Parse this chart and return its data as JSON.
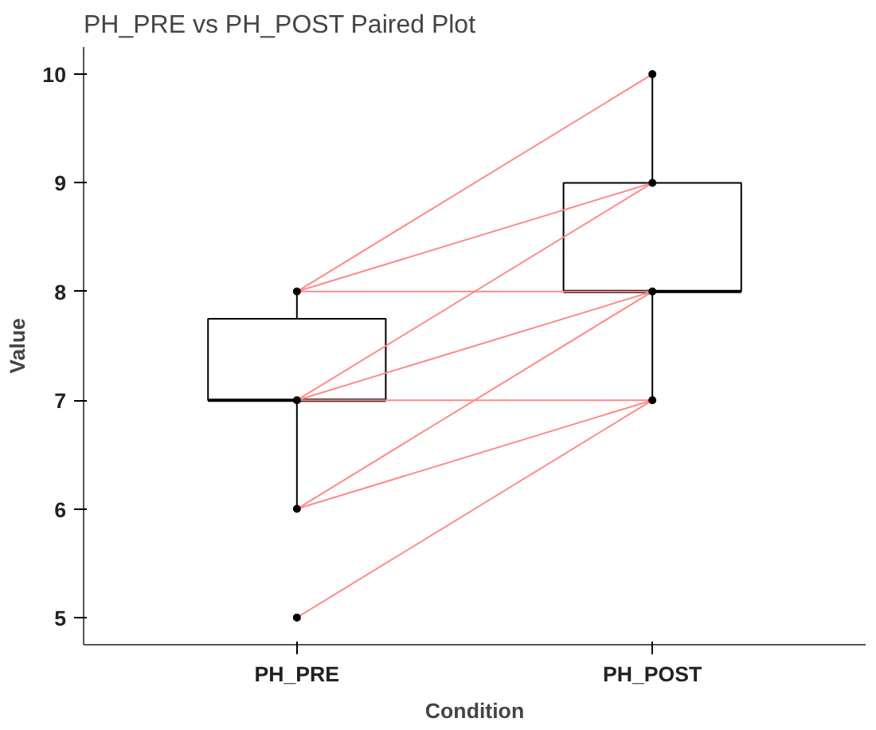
{
  "chart_data": {
    "type": "box",
    "title": "PH_PRE vs PH_POST Paired Plot",
    "xlabel": "Condition",
    "ylabel": "Value",
    "categories": [
      "PH_PRE",
      "PH_POST"
    ],
    "boxes": [
      {
        "low": 6,
        "q1": 7,
        "median": 7,
        "q3": 7.75,
        "high": 8
      },
      {
        "low": 7,
        "q1": 8,
        "median": 8,
        "q3": 9,
        "high": 10
      }
    ],
    "series": [
      {
        "type": "line",
        "color": "#ff8a8a",
        "x": [
          "PH_PRE",
          "PH_POST"
        ],
        "values": [
          8,
          10
        ]
      },
      {
        "type": "line",
        "color": "#ff8a8a",
        "x": [
          "PH_PRE",
          "PH_POST"
        ],
        "values": [
          8,
          9
        ]
      },
      {
        "type": "line",
        "color": "#ff8a8a",
        "x": [
          "PH_PRE",
          "PH_POST"
        ],
        "values": [
          8,
          8
        ]
      },
      {
        "type": "line",
        "color": "#ff8a8a",
        "x": [
          "PH_PRE",
          "PH_POST"
        ],
        "values": [
          7,
          9
        ]
      },
      {
        "type": "line",
        "color": "#ff8a8a",
        "x": [
          "PH_PRE",
          "PH_POST"
        ],
        "values": [
          7,
          8
        ]
      },
      {
        "type": "line",
        "color": "#ff8a8a",
        "x": [
          "PH_PRE",
          "PH_POST"
        ],
        "values": [
          7,
          7
        ]
      },
      {
        "type": "line",
        "color": "#ff8a8a",
        "x": [
          "PH_PRE",
          "PH_POST"
        ],
        "values": [
          6,
          8
        ]
      },
      {
        "type": "line",
        "color": "#ff8a8a",
        "x": [
          "PH_PRE",
          "PH_POST"
        ],
        "values": [
          6,
          7
        ]
      },
      {
        "type": "line",
        "color": "#ff8a8a",
        "x": [
          "PH_PRE",
          "PH_POST"
        ],
        "values": [
          5,
          7
        ]
      },
      {
        "type": "scatter",
        "color": "#000000",
        "marker": "circle",
        "x": [
          "PH_PRE",
          "PH_PRE",
          "PH_PRE",
          "PH_PRE",
          "PH_POST",
          "PH_POST",
          "PH_POST",
          "PH_POST"
        ],
        "values": [
          8,
          7,
          6,
          5,
          10,
          9,
          8,
          7
        ]
      }
    ],
    "ylim": [
      4.75,
      10.25
    ],
    "yticks": [
      5,
      6,
      7,
      8,
      9,
      10
    ],
    "grid": false
  }
}
